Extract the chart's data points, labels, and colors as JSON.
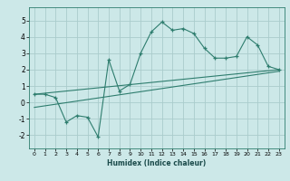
{
  "xlabel": "Humidex (Indice chaleur)",
  "ylabel": "",
  "xlim": [
    -0.5,
    23.5
  ],
  "ylim": [
    -2.8,
    5.8
  ],
  "xticks": [
    0,
    1,
    2,
    3,
    4,
    5,
    6,
    7,
    8,
    9,
    10,
    11,
    12,
    13,
    14,
    15,
    16,
    17,
    18,
    19,
    20,
    21,
    22,
    23
  ],
  "yticks": [
    -2,
    -1,
    0,
    1,
    2,
    3,
    4,
    5
  ],
  "bg_color": "#cce8e8",
  "grid_color": "#aacccc",
  "line_color": "#2e7d6e",
  "main_x": [
    0,
    1,
    2,
    3,
    4,
    5,
    6,
    7,
    8,
    9,
    10,
    11,
    12,
    13,
    14,
    15,
    16,
    17,
    18,
    19,
    20,
    21,
    22,
    23
  ],
  "main_y": [
    0.5,
    0.5,
    0.3,
    -1.2,
    -0.8,
    -0.9,
    -2.1,
    2.6,
    0.7,
    1.1,
    3.0,
    4.3,
    4.9,
    4.4,
    4.5,
    4.2,
    3.3,
    2.7,
    2.7,
    2.8,
    4.0,
    3.5,
    2.2,
    2.0
  ],
  "line1_x": [
    0,
    23
  ],
  "line1_y": [
    0.5,
    2.0
  ],
  "line2_x": [
    0,
    23
  ],
  "line2_y": [
    -0.3,
    1.9
  ]
}
